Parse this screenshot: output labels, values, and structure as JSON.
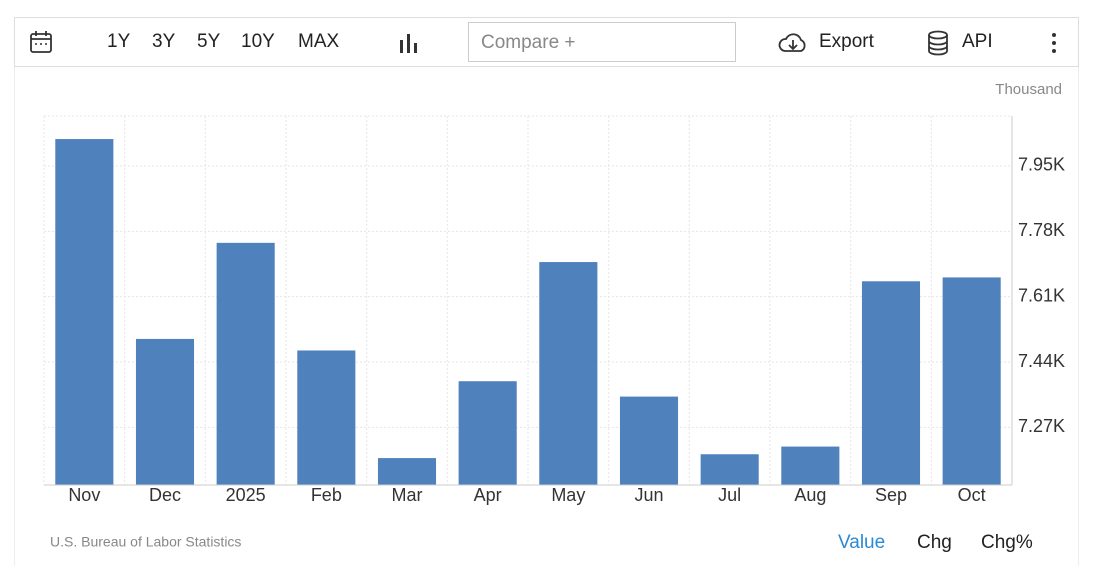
{
  "toolbar": {
    "ranges": [
      "1Y",
      "3Y",
      "5Y",
      "10Y",
      "MAX"
    ],
    "compare": "Compare +",
    "export": "Export",
    "api": "API"
  },
  "chart_data": {
    "type": "bar",
    "unit": "Thousand",
    "categories": [
      "Nov",
      "Dec",
      "2025",
      "Feb",
      "Mar",
      "Apr",
      "May",
      "Jun",
      "Jul",
      "Aug",
      "Sep",
      "Oct"
    ],
    "values": [
      8.02,
      7.5,
      7.75,
      7.47,
      7.19,
      7.39,
      7.7,
      7.35,
      7.2,
      7.22,
      7.65,
      7.66
    ],
    "color": "#4f81bd",
    "ylim": [
      7.12,
      8.08
    ],
    "yticks": [
      {
        "value": 7.27,
        "label": "7.27K"
      },
      {
        "value": 7.44,
        "label": "7.44K"
      },
      {
        "value": 7.61,
        "label": "7.61K"
      },
      {
        "value": 7.78,
        "label": "7.78K"
      },
      {
        "value": 7.95,
        "label": "7.95K"
      }
    ],
    "grid": true,
    "source": "U.S. Bureau of Labor Statistics"
  },
  "footer": {
    "modes": [
      "Value",
      "Chg",
      "Chg%"
    ]
  }
}
